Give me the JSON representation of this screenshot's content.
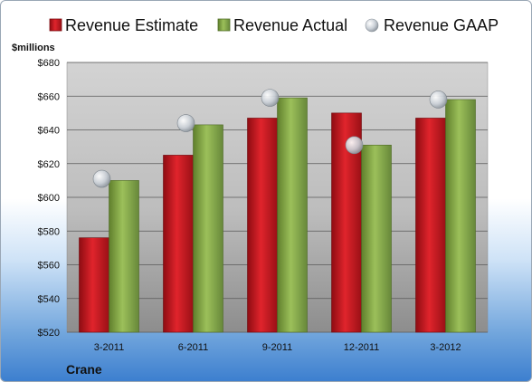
{
  "legend": {
    "estimate_label": "Revenue Estimate",
    "actual_label": "Revenue Actual",
    "gaap_label": "Revenue GAAP"
  },
  "company": "Crane",
  "colors": {
    "estimate": "#c8161e",
    "actual": "#8aae4a",
    "gaap": "#c9cfd6",
    "plot_bg": "#c6c6c6"
  },
  "chart_data": {
    "type": "bar",
    "ylabel": "$millions",
    "ylim": [
      520,
      680
    ],
    "y_ticks": [
      520,
      540,
      560,
      580,
      600,
      620,
      640,
      660,
      680
    ],
    "y_tick_labels": [
      "$520",
      "$540",
      "$560",
      "$580",
      "$600",
      "$620",
      "$640",
      "$660",
      "$680"
    ],
    "categories": [
      "3-2011",
      "6-2011",
      "9-2011",
      "12-2011",
      "3-2012"
    ],
    "grid": true,
    "legend_position": "top",
    "series": [
      {
        "name": "Revenue Estimate",
        "kind": "bar",
        "values": [
          576,
          625,
          647,
          650,
          647
        ]
      },
      {
        "name": "Revenue Actual",
        "kind": "bar",
        "values": [
          610,
          643,
          659,
          631,
          658
        ]
      },
      {
        "name": "Revenue GAAP",
        "kind": "marker",
        "values": [
          611,
          644,
          659,
          631,
          658
        ]
      }
    ]
  }
}
